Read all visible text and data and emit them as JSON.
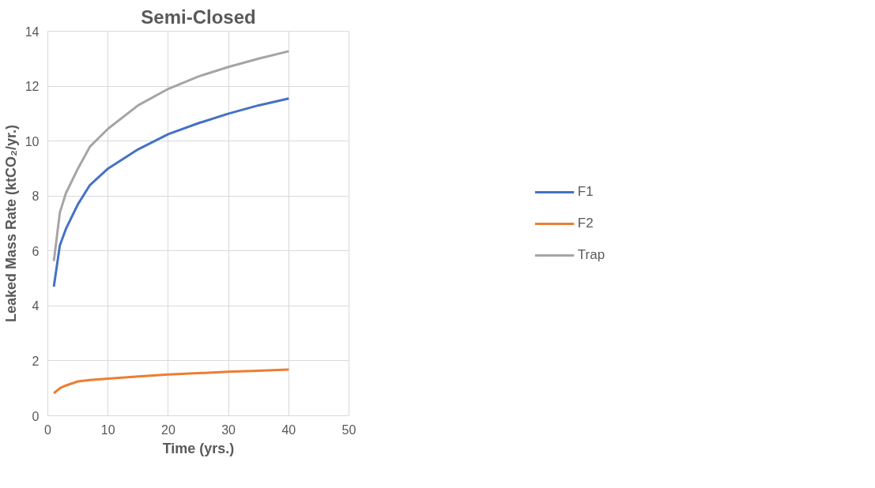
{
  "chart_data": {
    "type": "line",
    "title": "Semi-Closed",
    "xlabel": "Time (yrs.)",
    "ylabel": "Leaked Mass Rate (ktCO₂/yr.)",
    "x": [
      1,
      2,
      3,
      5,
      7,
      10,
      15,
      20,
      25,
      30,
      35,
      40
    ],
    "series": [
      {
        "name": "F1",
        "color": "#4472c4",
        "values": [
          4.7,
          6.2,
          6.8,
          7.7,
          8.4,
          9.0,
          9.7,
          10.25,
          10.65,
          11.0,
          11.3,
          11.55
        ]
      },
      {
        "name": "F2",
        "color": "#ed7d31",
        "values": [
          0.82,
          1.0,
          1.1,
          1.25,
          1.3,
          1.35,
          1.43,
          1.5,
          1.55,
          1.6,
          1.64,
          1.68
        ]
      },
      {
        "name": "Trap",
        "color": "#a5a5a5",
        "values": [
          5.63,
          7.4,
          8.1,
          9.0,
          9.8,
          10.45,
          11.3,
          11.9,
          12.35,
          12.7,
          13.0,
          13.27
        ]
      }
    ],
    "xlim": [
      0,
      50
    ],
    "xticks": [
      0,
      10,
      20,
      30,
      40,
      50
    ],
    "ylim": [
      0,
      14
    ],
    "yticks": [
      0,
      2,
      4,
      6,
      8,
      10,
      12,
      14
    ],
    "grid": true,
    "legend": "right",
    "marker": "none",
    "line_style": "solid"
  }
}
